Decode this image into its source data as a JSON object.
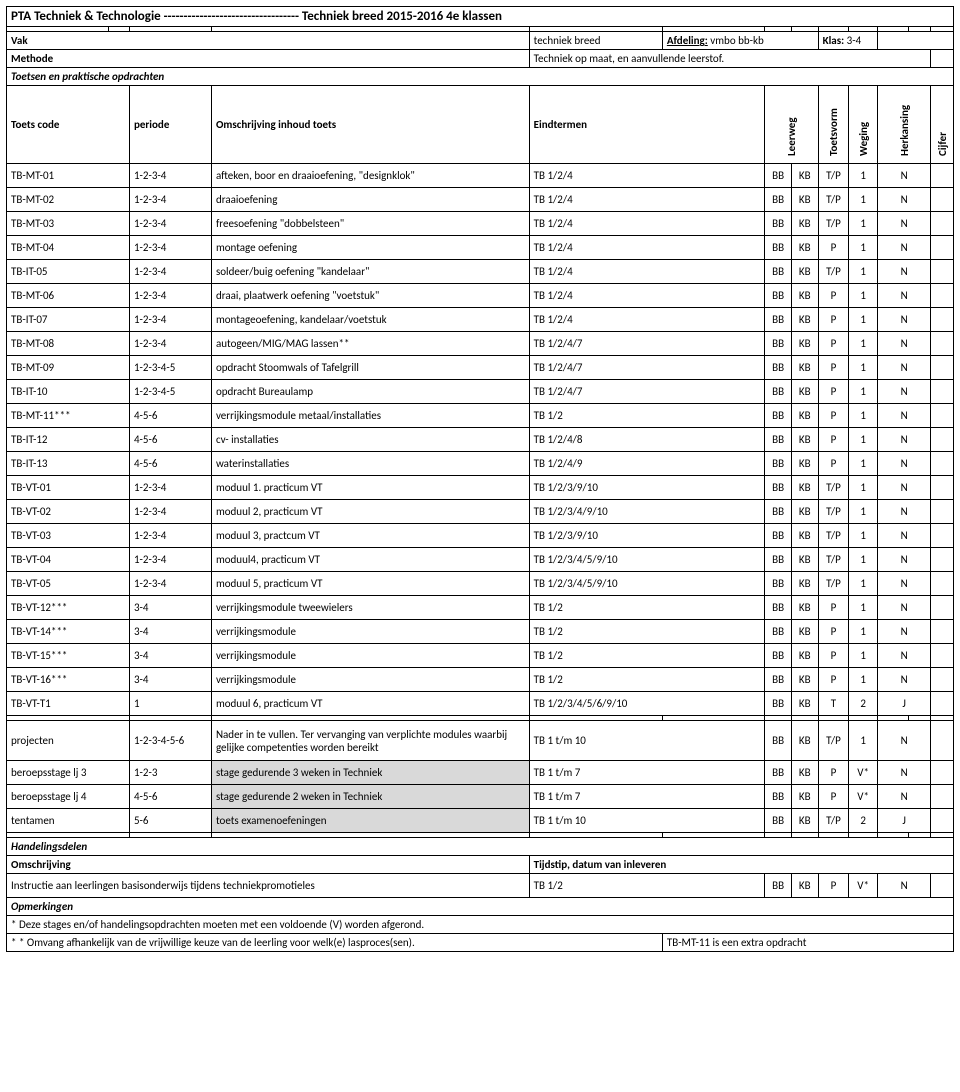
{
  "title_line": "PTA Techniek & Technologie ---------------------------------- Techniek breed 2015-2016        4e klassen",
  "vak_label": "Vak",
  "vak_value": "techniek breed",
  "afdeling_label": "Afdeling:",
  "afdeling_value": "vmbo bb-kb",
  "klas_label": "Klas:",
  "klas_value": "3-4",
  "methode_label": "Methode",
  "methode_value": "Techniek op maat, en aanvullende leerstof.",
  "toetsen_label": "Toetsen en praktische opdrachten",
  "cols": {
    "toetscode": "Toets code",
    "periode": "periode",
    "omschrijving": "Omschrijving inhoud toets",
    "eindtermen": "Eindtermen",
    "leerweg": "Leerweg",
    "toetsvorm": "Toetsvorm",
    "weging": "Weging",
    "herkansing": "Herkansing",
    "cijfer": "Cijfer"
  },
  "rows": [
    {
      "code": "TB-MT-01",
      "periode": "1-2-3-4",
      "omschr": "afteken, boor en draaioefening, \"designklok\"",
      "eind": "TB 1/2/4",
      "lw1": "BB",
      "lw2": "KB",
      "tv": "T/P",
      "wg": "1",
      "hk": "N",
      "cf": ""
    },
    {
      "code": "TB-MT-02",
      "periode": "1-2-3-4",
      "omschr": "draaioefening",
      "eind": "TB 1/2/4",
      "lw1": "BB",
      "lw2": "KB",
      "tv": "T/P",
      "wg": "1",
      "hk": "N",
      "cf": ""
    },
    {
      "code": "TB-MT-03",
      "periode": "1-2-3-4",
      "omschr": "freesoefening \"dobbelsteen\"",
      "eind": "TB 1/2/4",
      "lw1": "BB",
      "lw2": "KB",
      "tv": "T/P",
      "wg": "1",
      "hk": "N",
      "cf": ""
    },
    {
      "code": "TB-MT-04",
      "periode": "1-2-3-4",
      "omschr": "montage oefening",
      "eind": "TB 1/2/4",
      "lw1": "BB",
      "lw2": "KB",
      "tv": "P",
      "wg": "1",
      "hk": "N",
      "cf": ""
    },
    {
      "code": "TB-IT-05",
      "periode": "1-2-3-4",
      "omschr": "soldeer/buig oefening \"kandelaar\"",
      "eind": "TB 1/2/4",
      "lw1": "BB",
      "lw2": "KB",
      "tv": "T/P",
      "wg": "1",
      "hk": "N",
      "cf": ""
    },
    {
      "code": "TB-MT-06",
      "periode": "1-2-3-4",
      "omschr": "draai, plaatwerk oefening \"voetstuk\"",
      "eind": "TB 1/2/4",
      "lw1": "BB",
      "lw2": "KB",
      "tv": "P",
      "wg": "1",
      "hk": "N",
      "cf": ""
    },
    {
      "code": "TB-IT-07",
      "periode": "1-2-3-4",
      "omschr": "montageoefening, kandelaar/voetstuk",
      "eind": "TB 1/2/4",
      "lw1": "BB",
      "lw2": "KB",
      "tv": "P",
      "wg": "1",
      "hk": "N",
      "cf": ""
    },
    {
      "code": "TB-MT-08",
      "periode": "1-2-3-4",
      "omschr": "autogeen/MIG/MAG lassen**",
      "eind": "TB 1/2/4/7",
      "lw1": "BB",
      "lw2": "KB",
      "tv": "P",
      "wg": "1",
      "hk": "N",
      "cf": ""
    },
    {
      "code": "TB-MT-09",
      "periode": "1-2-3-4-5",
      "omschr": "opdracht Stoomwals of Tafelgrill",
      "eind": "TB 1/2/4/7",
      "lw1": "BB",
      "lw2": "KB",
      "tv": "P",
      "wg": "1",
      "hk": "N",
      "cf": ""
    },
    {
      "code": "TB-IT-10",
      "periode": "1-2-3-4-5",
      "omschr": "opdracht Bureaulamp",
      "eind": "TB 1/2/4/7",
      "lw1": "BB",
      "lw2": "KB",
      "tv": "P",
      "wg": "1",
      "hk": "N",
      "cf": ""
    },
    {
      "code": "TB-MT-11***",
      "periode": "4-5-6",
      "omschr": "verrijkingsmodule metaal/installaties",
      "eind": "TB 1/2",
      "lw1": "BB",
      "lw2": "KB",
      "tv": "P",
      "wg": "1",
      "hk": "N",
      "cf": ""
    },
    {
      "code": "TB-IT-12",
      "periode": "4-5-6",
      "omschr": "cv- installaties",
      "eind": "TB 1/2/4/8",
      "lw1": "BB",
      "lw2": "KB",
      "tv": "P",
      "wg": "1",
      "hk": "N",
      "cf": ""
    },
    {
      "code": "TB-IT-13",
      "periode": "4-5-6",
      "omschr": "waterinstallaties",
      "eind": "TB 1/2/4/9",
      "lw1": "BB",
      "lw2": "KB",
      "tv": "P",
      "wg": "1",
      "hk": "N",
      "cf": ""
    },
    {
      "code": "TB-VT-01",
      "periode": "1-2-3-4",
      "omschr": "moduul 1. practicum VT",
      "eind": "TB 1/2/3/9/10",
      "lw1": "BB",
      "lw2": "KB",
      "tv": "T/P",
      "wg": "1",
      "hk": "N",
      "cf": ""
    },
    {
      "code": "TB-VT-02",
      "periode": "1-2-3-4",
      "omschr": "moduul 2, practicum VT",
      "eind": "TB 1/2/3/4/9/10",
      "lw1": "BB",
      "lw2": "KB",
      "tv": "T/P",
      "wg": "1",
      "hk": "N",
      "cf": ""
    },
    {
      "code": "TB-VT-03",
      "periode": "1-2-3-4",
      "omschr": "moduul 3, practcum VT",
      "eind": "TB 1/2/3/9/10",
      "lw1": "BB",
      "lw2": "KB",
      "tv": "T/P",
      "wg": "1",
      "hk": "N",
      "cf": ""
    },
    {
      "code": "TB-VT-04",
      "periode": "1-2-3-4",
      "omschr": "moduul4, practicum VT",
      "eind": "TB 1/2/3/4/5/9/10",
      "lw1": "BB",
      "lw2": "KB",
      "tv": "T/P",
      "wg": "1",
      "hk": "N",
      "cf": ""
    },
    {
      "code": "TB-VT-05",
      "periode": "1-2-3-4",
      "omschr": "moduul 5, practicum VT",
      "eind": "TB 1/2/3/4/5/9/10",
      "lw1": "BB",
      "lw2": "KB",
      "tv": "T/P",
      "wg": "1",
      "hk": "N",
      "cf": ""
    },
    {
      "code": "TB-VT-12***",
      "periode": "3-4",
      "omschr": "verrijkingsmodule tweewielers",
      "eind": "TB 1/2",
      "lw1": "BB",
      "lw2": "KB",
      "tv": "P",
      "wg": "1",
      "hk": "N",
      "cf": ""
    },
    {
      "code": "TB-VT-14***",
      "periode": "3-4",
      "omschr": "verrijkingsmodule",
      "eind": "TB 1/2",
      "lw1": "BB",
      "lw2": "KB",
      "tv": "P",
      "wg": "1",
      "hk": "N",
      "cf": ""
    },
    {
      "code": "TB-VT-15***",
      "periode": "3-4",
      "omschr": "verrijkingsmodule",
      "eind": "TB 1/2",
      "lw1": "BB",
      "lw2": "KB",
      "tv": "P",
      "wg": "1",
      "hk": "N",
      "cf": ""
    },
    {
      "code": "TB-VT-16***",
      "periode": "3-4",
      "omschr": "verrijkingsmodule",
      "eind": "TB 1/2",
      "lw1": "BB",
      "lw2": "KB",
      "tv": "P",
      "wg": "1",
      "hk": "N",
      "cf": ""
    },
    {
      "code": "TB-VT-T1",
      "periode": "1",
      "omschr": "moduul 6, practicum VT",
      "eind": "TB 1/2/3/4/5/6/9/10",
      "lw1": "BB",
      "lw2": "KB",
      "tv": "T",
      "wg": "2",
      "hk": "J",
      "cf": ""
    }
  ],
  "extra_rows": [
    {
      "code": "projecten",
      "periode": "1-2-3-4-5-6",
      "omschr": "Nader in te vullen. Ter vervanging van verplichte modules waarbij gelijke competenties worden bereikt",
      "eind": "TB 1 t/m 10",
      "lw1": "BB",
      "lw2": "KB",
      "tv": "T/P",
      "wg": "1",
      "hk": "N",
      "cf": "",
      "shaded": false,
      "wrap": true
    },
    {
      "code": "beroepsstage lj 3",
      "periode": "1-2-3",
      "omschr": "stage gedurende 3 weken in Techniek",
      "eind": "TB 1 t/m 7",
      "lw1": "BB",
      "lw2": "KB",
      "tv": "P",
      "wg": "V*",
      "hk": "N",
      "cf": "",
      "shaded": true
    },
    {
      "code": "beroepsstage lj 4",
      "periode": "4-5-6",
      "omschr": "stage gedurende 2 weken in Techniek",
      "eind": "TB 1 t/m 7",
      "lw1": "BB",
      "lw2": "KB",
      "tv": "P",
      "wg": "V*",
      "hk": "N",
      "cf": "",
      "shaded": true
    },
    {
      "code": "tentamen",
      "periode": "5-6",
      "omschr": "toets examenoefeningen",
      "eind": "TB 1 t/m 10",
      "lw1": "BB",
      "lw2": "KB",
      "tv": "T/P",
      "wg": "2",
      "hk": "J",
      "cf": "",
      "shaded": true
    }
  ],
  "handelingsdelen_label": "Handelingsdelen",
  "omschrijving_label": "Omschrijving",
  "tijdstip_label": "Tijdstip, datum van inleveren",
  "instructie_row": {
    "omschr": "Instructie aan leerlingen basisonderwijs tijdens techniekpromotieles",
    "eind": "TB 1/2",
    "lw1": "BB",
    "lw2": "KB",
    "tv": "P",
    "wg": "V*",
    "hk": "N",
    "cf": ""
  },
  "opmerkingen_label": "Opmerkingen",
  "note1": "*  Deze stages en/of handelingsopdrachten moeten met een voldoende (V) worden afgerond.",
  "note2_left": "* * Omvang afhankelijk van de vrijwillige keuze van de leerling voor welk(e)   lasproces(sen).",
  "note2_right": "TB-MT-11 is een extra opdracht"
}
